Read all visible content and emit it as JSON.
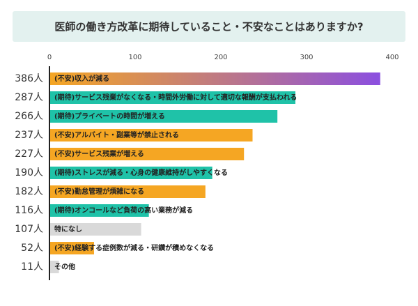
{
  "chart_data": {
    "type": "bar",
    "orientation": "horizontal",
    "title": "医師の働き方改革に期待していること・不安なことはありますか?",
    "categories": [
      "(不安)収入が減る",
      "(期待)サービス残業がなくなる・時間外労働に対して適切な報酬が支払われる",
      "(期待)プライベートの時間が増える",
      "(不安)アルバイト・副業等が禁止される",
      "(不安)サービス残業が増える",
      "(期待)ストレスが減る・心身の健康維持がしやすくなる",
      "(不安)勤怠管理が煩雑になる",
      "(期待)オンコールなど負荷の高い業務が減る",
      "特になし",
      "(不安)経験する症例数が減る・研鑽が積めなくなる",
      "その他"
    ],
    "values": [
      386,
      287,
      266,
      237,
      227,
      190,
      182,
      116,
      107,
      52,
      11
    ],
    "value_labels": [
      "386人",
      "287人",
      "266人",
      "237人",
      "227人",
      "190人",
      "182人",
      "116人",
      "107人",
      "52人",
      "11人"
    ],
    "colors": [
      "#f5a623",
      "#1fc2a8",
      "#1fc2a8",
      "#f5a623",
      "#f5a623",
      "#1fc2a8",
      "#f5a623",
      "#1fc2a8",
      "#d9d9d9",
      "#f5a623",
      "#d9d9d9"
    ],
    "gradient": [
      "#f5a623",
      "#8b4fe0"
    ],
    "xlim": [
      0,
      400
    ],
    "xticks": [
      0,
      100,
      200,
      300,
      400
    ],
    "grid": false
  }
}
